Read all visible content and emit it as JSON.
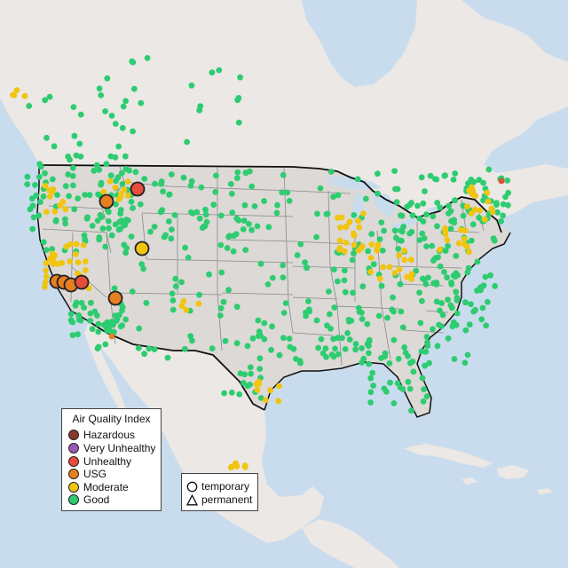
{
  "legend": {
    "title": "Air Quality Index",
    "categories": [
      {
        "label": "Hazardous",
        "color": "#8a3a2a"
      },
      {
        "label": "Very Unhealthy",
        "color": "#9b59b6"
      },
      {
        "label": "Unhealthy",
        "color": "#e74c3c"
      },
      {
        "label": "USG",
        "color": "#e67e22"
      },
      {
        "label": "Moderate",
        "color": "#f1c40f"
      },
      {
        "label": "Good",
        "color": "#2ecc71"
      }
    ]
  },
  "monitor_types": [
    {
      "label": "temporary",
      "icon": "circle-outline-icon"
    },
    {
      "label": "permanent",
      "icon": "triangle-outline-icon"
    }
  ],
  "colors": {
    "ocean": "#c9dced",
    "land": "#ebe8e5",
    "land_us": "#dcd9d6",
    "mountains": "#d6d2cc",
    "state_border": "#8a8a8a",
    "country_border": "#111111"
  }
}
